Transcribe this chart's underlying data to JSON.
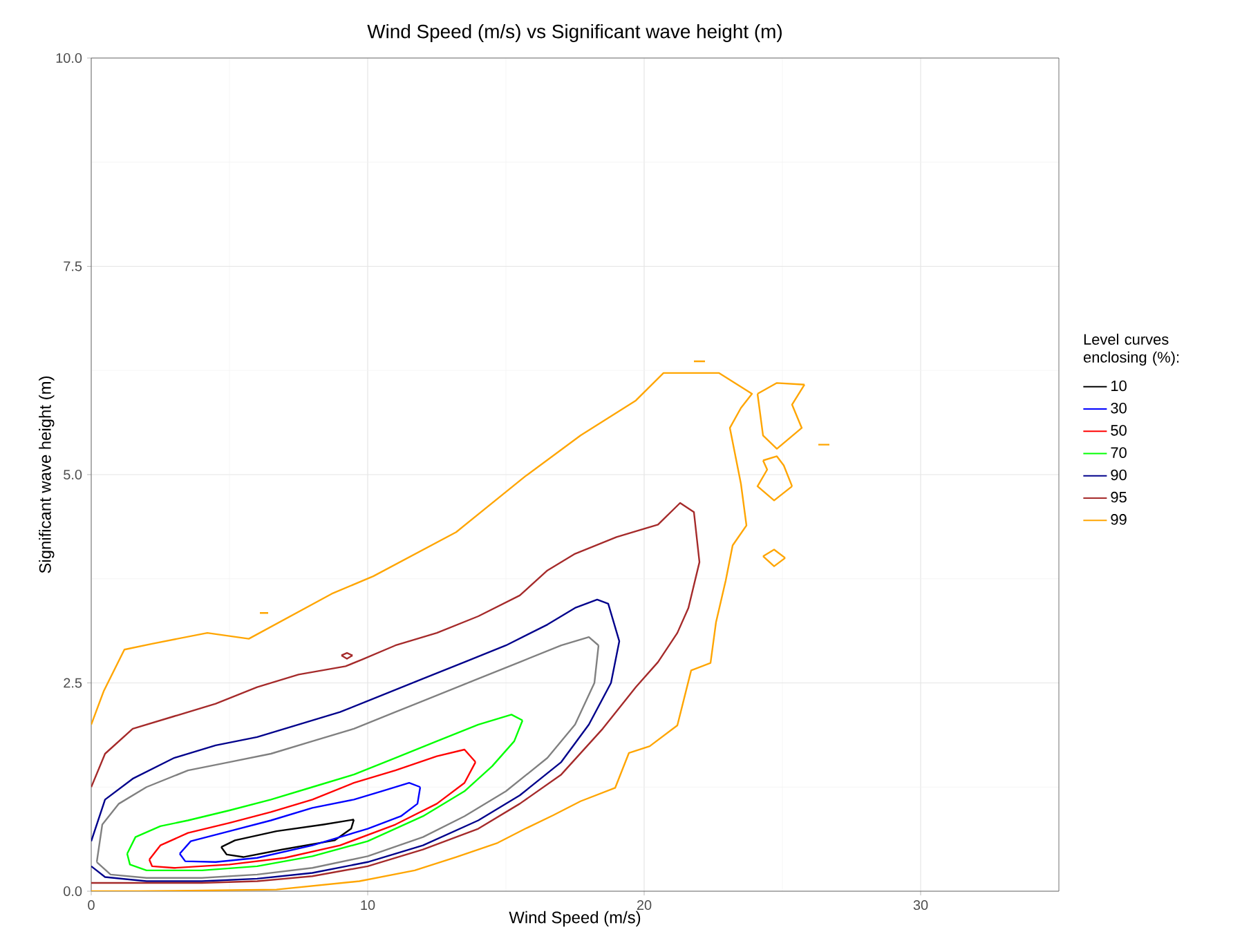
{
  "chart_data": {
    "type": "line",
    "title": "Wind Speed (m/s) vs Significant wave height (m)",
    "xlabel": "Wind Speed (m/s)",
    "ylabel": "Significant wave height (m)",
    "legend_title": "Level curves enclosing (%):",
    "legend": "right",
    "grid": true,
    "xlim": [
      0,
      35
    ],
    "ylim": [
      0,
      10
    ],
    "xticks": [
      0,
      10,
      20,
      30
    ],
    "yticks": [
      {
        "value": 0,
        "label": "0.0"
      },
      {
        "value": 2.5,
        "label": "2.5"
      },
      {
        "value": 5,
        "label": "5.0"
      },
      {
        "value": 7.5,
        "label": "7.5"
      },
      {
        "value": 10,
        "label": "10.0"
      }
    ],
    "series": [
      {
        "name": "10",
        "color": "#000000",
        "x": [
          4.7,
          5.2,
          6.7,
          8.4,
          9.5,
          null,
          9.5,
          9.4,
          8.8,
          6.9,
          5.5,
          4.9,
          4.7
        ],
        "values": [
          0.53,
          0.61,
          0.72,
          0.8,
          0.86,
          null,
          0.86,
          0.75,
          0.61,
          0.5,
          0.41,
          0.44,
          0.53
        ]
      },
      {
        "name": "30",
        "color": "#0000ff",
        "x": [
          3.2,
          3.6,
          5,
          6.5,
          8,
          9.5,
          10.5,
          11.5,
          11.9,
          null,
          11.9,
          11.8,
          11.2,
          10,
          8,
          6,
          4.5,
          3.4,
          3.2
        ],
        "values": [
          0.45,
          0.6,
          0.72,
          0.85,
          1.0,
          1.1,
          1.2,
          1.3,
          1.25,
          null,
          1.25,
          1.05,
          0.9,
          0.75,
          0.55,
          0.4,
          0.35,
          0.36,
          0.45
        ]
      },
      {
        "name": "50",
        "color": "#ff0000",
        "x": [
          2.1,
          2.5,
          3.5,
          5,
          6.5,
          8,
          9.5,
          11,
          12.5,
          13.5,
          13.9,
          null,
          13.9,
          13.5,
          12.5,
          11,
          9,
          7,
          5,
          3,
          2.2,
          2.1
        ],
        "values": [
          0.38,
          0.55,
          0.7,
          0.82,
          0.95,
          1.1,
          1.3,
          1.45,
          1.62,
          1.7,
          1.55,
          null,
          1.55,
          1.3,
          1.05,
          0.8,
          0.55,
          0.4,
          0.32,
          0.28,
          0.3,
          0.38
        ]
      },
      {
        "name": "70",
        "color": "#00ff00",
        "x": [
          1.3,
          1.6,
          2.5,
          3.5,
          5,
          6.5,
          8,
          9.5,
          11,
          12.5,
          14,
          15.2,
          15.6,
          null,
          15.6,
          15.3,
          14.5,
          13.5,
          12,
          10,
          8,
          6,
          4,
          2,
          1.4,
          1.3
        ],
        "values": [
          0.45,
          0.65,
          0.78,
          0.85,
          0.97,
          1.1,
          1.25,
          1.4,
          1.6,
          1.8,
          2.0,
          2.12,
          2.05,
          null,
          2.05,
          1.8,
          1.5,
          1.2,
          0.9,
          0.6,
          0.42,
          0.3,
          0.25,
          0.25,
          0.32,
          0.45
        ]
      },
      {
        "color": "#808080",
        "x": [
          0.2,
          0.4,
          1,
          2,
          3.5,
          5,
          6.5,
          8,
          9.5,
          11,
          12.5,
          14,
          15.5,
          17,
          18,
          18.35,
          null,
          18.35,
          18.2,
          17.5,
          16.5,
          15,
          13.5,
          12,
          10,
          8,
          6,
          4,
          2,
          0.7,
          0.2
        ],
        "values": [
          0.35,
          0.8,
          1.05,
          1.25,
          1.45,
          1.55,
          1.65,
          1.8,
          1.95,
          2.15,
          2.35,
          2.55,
          2.75,
          2.95,
          3.05,
          2.95,
          null,
          2.95,
          2.5,
          2.0,
          1.6,
          1.2,
          0.9,
          0.65,
          0.42,
          0.28,
          0.2,
          0.16,
          0.16,
          0.2,
          0.35
        ]
      },
      {
        "name": "90",
        "color": "#00008b",
        "x": [
          0,
          0.5,
          1.5,
          3,
          4.5,
          6,
          7.5,
          9,
          10.5,
          12,
          13.5,
          15,
          16.5,
          17.5,
          18.3,
          18.7,
          19.1,
          18.8,
          18,
          17,
          15.5,
          14,
          12,
          10,
          8,
          6,
          4,
          2,
          0.5,
          0
        ],
        "values": [
          0.6,
          1.1,
          1.35,
          1.6,
          1.75,
          1.85,
          2.0,
          2.15,
          2.35,
          2.55,
          2.75,
          2.95,
          3.2,
          3.4,
          3.5,
          3.45,
          3.0,
          2.5,
          2.0,
          1.55,
          1.15,
          0.85,
          0.55,
          0.35,
          0.22,
          0.15,
          0.12,
          0.12,
          0.17,
          0.3
        ]
      },
      {
        "name": "95",
        "color": "#a52a2a",
        "x": [
          0,
          0.5,
          1.5,
          3,
          4.5,
          6,
          7.5,
          9.2,
          9.8,
          11,
          12.5,
          14,
          15.5,
          16.5,
          17.5,
          19,
          20.5,
          21.3,
          21.8,
          22.0,
          21.6,
          21.2,
          20.5,
          19.7,
          18.5,
          17,
          15.5,
          14,
          12,
          10,
          8,
          6,
          4,
          2,
          0
        ],
        "values": [
          1.25,
          1.65,
          1.95,
          2.1,
          2.25,
          2.45,
          2.6,
          2.7,
          2.78,
          2.95,
          3.1,
          3.3,
          3.55,
          3.85,
          4.05,
          4.25,
          4.4,
          4.66,
          4.55,
          3.95,
          3.4,
          3.1,
          2.75,
          2.45,
          1.95,
          1.4,
          1.05,
          0.75,
          0.5,
          0.3,
          0.18,
          0.12,
          0.1,
          0.1,
          0.1
        ]
      },
      {
        "color": "#a52a2a",
        "x": [
          9.05,
          9.25,
          9.45,
          null,
          9.45,
          9.25,
          9.05
        ],
        "values": [
          2.83,
          2.86,
          2.83,
          null,
          2.83,
          2.79,
          2.83
        ]
      },
      {
        "name": "99",
        "color": "#ffa500",
        "x": [
          0,
          0.45,
          1.2,
          2.2,
          4.2,
          5.7,
          8.7,
          10.2,
          13.2,
          15.7,
          17.7,
          19.7,
          20.7,
          22.7,
          23.9,
          23.5,
          23.1,
          23.5,
          23.7,
          23.2,
          22.95,
          22.6,
          22.4,
          21.7,
          21.2,
          20.2,
          19.45,
          18.95,
          17.7,
          16.7,
          15.7,
          14.7,
          13.2,
          11.7,
          9.7,
          6.7,
          1.7,
          0,
          null,
          24.1,
          24.8,
          25.8,
          null,
          25.8,
          25.35,
          25.7,
          24.8,
          24.3,
          24.1,
          null,
          24.3,
          24.8,
          25.05,
          25.35,
          null,
          25.35,
          24.7,
          24.1,
          24.45,
          24.3,
          null,
          24.3,
          24.7,
          25.1,
          null,
          25.1,
          24.7,
          24.3,
          null,
          21.8,
          22.2,
          null,
          26.3,
          26.7,
          null,
          6.1,
          6.4
        ],
        "values": [
          2.0,
          2.4,
          2.9,
          2.97,
          3.1,
          3.03,
          3.57,
          3.78,
          4.31,
          4.98,
          5.47,
          5.89,
          6.22,
          6.22,
          5.97,
          5.8,
          5.56,
          4.89,
          4.39,
          4.15,
          3.73,
          3.23,
          2.74,
          2.65,
          1.99,
          1.74,
          1.66,
          1.24,
          1.08,
          0.91,
          0.75,
          0.58,
          0.41,
          0.25,
          0.12,
          0.02,
          0,
          0,
          null,
          5.97,
          6.1,
          6.08,
          null,
          6.08,
          5.84,
          5.56,
          5.31,
          5.47,
          5.97,
          null,
          5.17,
          5.22,
          5.11,
          4.86,
          null,
          4.86,
          4.69,
          4.86,
          5.06,
          5.17,
          null,
          4.02,
          4.1,
          4.0,
          null,
          4.0,
          3.9,
          4.02,
          null,
          6.36,
          6.36,
          null,
          5.36,
          5.36,
          null,
          3.34,
          3.34
        ]
      }
    ]
  }
}
